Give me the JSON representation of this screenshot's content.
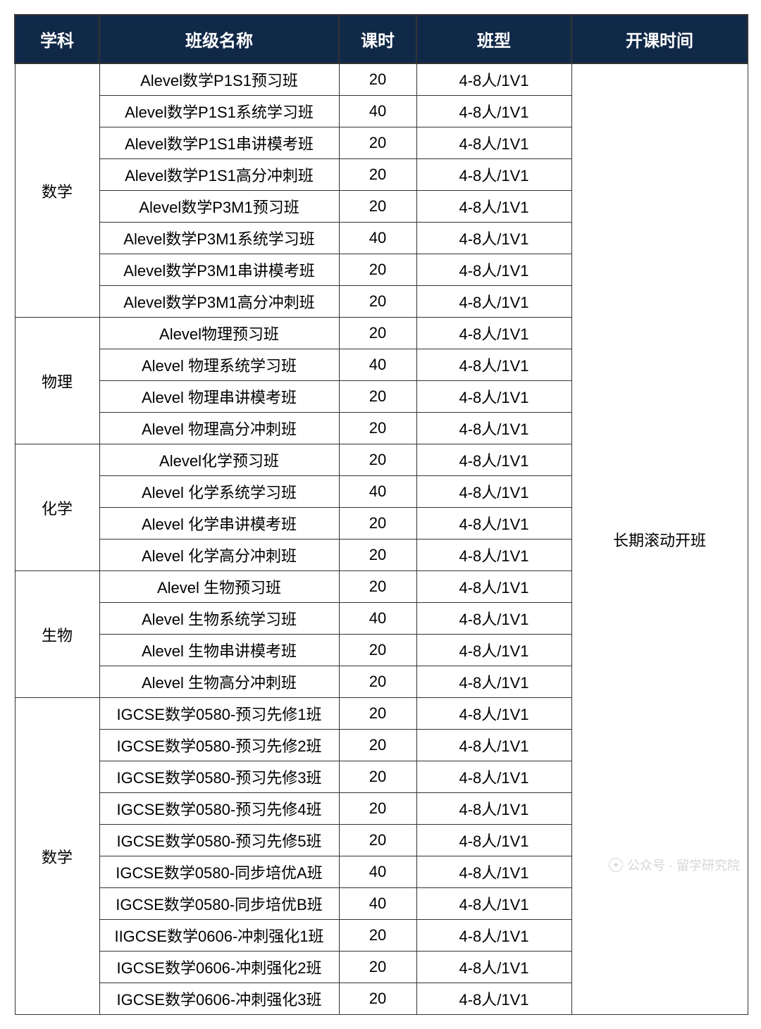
{
  "header": {
    "subject": "学科",
    "className": "班级名称",
    "hours": "课时",
    "classType": "班型",
    "openTime": "开课时间"
  },
  "openTimeValue": "长期滚动开班",
  "groups": [
    {
      "subject": "数学",
      "rows": [
        {
          "name": "Alevel数学P1S1预习班",
          "hours": "20",
          "type": "4-8人/1V1"
        },
        {
          "name": "Alevel数学P1S1系统学习班",
          "hours": "40",
          "type": "4-8人/1V1"
        },
        {
          "name": "Alevel数学P1S1串讲模考班",
          "hours": "20",
          "type": "4-8人/1V1"
        },
        {
          "name": "Alevel数学P1S1高分冲刺班",
          "hours": "20",
          "type": "4-8人/1V1"
        },
        {
          "name": "Alevel数学P3M1预习班",
          "hours": "20",
          "type": "4-8人/1V1"
        },
        {
          "name": "Alevel数学P3M1系统学习班",
          "hours": "40",
          "type": "4-8人/1V1"
        },
        {
          "name": "Alevel数学P3M1串讲模考班",
          "hours": "20",
          "type": "4-8人/1V1"
        },
        {
          "name": "Alevel数学P3M1高分冲刺班",
          "hours": "20",
          "type": "4-8人/1V1"
        }
      ]
    },
    {
      "subject": "物理",
      "rows": [
        {
          "name": "Alevel物理预习班",
          "hours": "20",
          "type": "4-8人/1V1"
        },
        {
          "name": "Alevel 物理系统学习班",
          "hours": "40",
          "type": "4-8人/1V1"
        },
        {
          "name": "Alevel 物理串讲模考班",
          "hours": "20",
          "type": "4-8人/1V1"
        },
        {
          "name": "Alevel 物理高分冲刺班",
          "hours": "20",
          "type": "4-8人/1V1"
        }
      ]
    },
    {
      "subject": "化学",
      "rows": [
        {
          "name": "Alevel化学预习班",
          "hours": "20",
          "type": "4-8人/1V1"
        },
        {
          "name": "Alevel 化学系统学习班",
          "hours": "40",
          "type": "4-8人/1V1"
        },
        {
          "name": "Alevel 化学串讲模考班",
          "hours": "20",
          "type": "4-8人/1V1"
        },
        {
          "name": "Alevel 化学高分冲刺班",
          "hours": "20",
          "type": "4-8人/1V1"
        }
      ]
    },
    {
      "subject": "生物",
      "rows": [
        {
          "name": "Alevel 生物预习班",
          "hours": "20",
          "type": "4-8人/1V1"
        },
        {
          "name": "Alevel 生物系统学习班",
          "hours": "40",
          "type": "4-8人/1V1"
        },
        {
          "name": "Alevel 生物串讲模考班",
          "hours": "20",
          "type": "4-8人/1V1"
        },
        {
          "name": "Alevel 生物高分冲刺班",
          "hours": "20",
          "type": "4-8人/1V1"
        }
      ]
    },
    {
      "subject": "数学",
      "rows": [
        {
          "name": "IGCSE数学0580-预习先修1班",
          "hours": "20",
          "type": "4-8人/1V1"
        },
        {
          "name": "IGCSE数学0580-预习先修2班",
          "hours": "20",
          "type": "4-8人/1V1"
        },
        {
          "name": "IGCSE数学0580-预习先修3班",
          "hours": "20",
          "type": "4-8人/1V1"
        },
        {
          "name": "IGCSE数学0580-预习先修4班",
          "hours": "20",
          "type": "4-8人/1V1"
        },
        {
          "name": "IGCSE数学0580-预习先修5班",
          "hours": "20",
          "type": "4-8人/1V1"
        },
        {
          "name": "IGCSE数学0580-同步培优A班",
          "hours": "40",
          "type": "4-8人/1V1"
        },
        {
          "name": "IGCSE数学0580-同步培优B班",
          "hours": "40",
          "type": "4-8人/1V1"
        },
        {
          "name": "IIGCSE数学0606-冲刺强化1班",
          "hours": "20",
          "type": "4-8人/1V1"
        },
        {
          "name": "IGCSE数学0606-冲刺强化2班",
          "hours": "20",
          "type": "4-8人/1V1"
        },
        {
          "name": "IGCSE数学0606-冲刺强化3班",
          "hours": "20",
          "type": "4-8人/1V1"
        }
      ]
    }
  ],
  "watermark": "公众号 · 留学研究院",
  "styling": {
    "header_bg": "#112948",
    "header_color": "#ffffff",
    "border_color": "#333333",
    "cell_bg": "#ffffff",
    "cell_color": "#000000",
    "header_fontsize": 24,
    "cell_fontsize": 22,
    "col_widths": {
      "subject": 120,
      "name": 340,
      "hours": 110,
      "type": 220,
      "time": 250
    }
  }
}
